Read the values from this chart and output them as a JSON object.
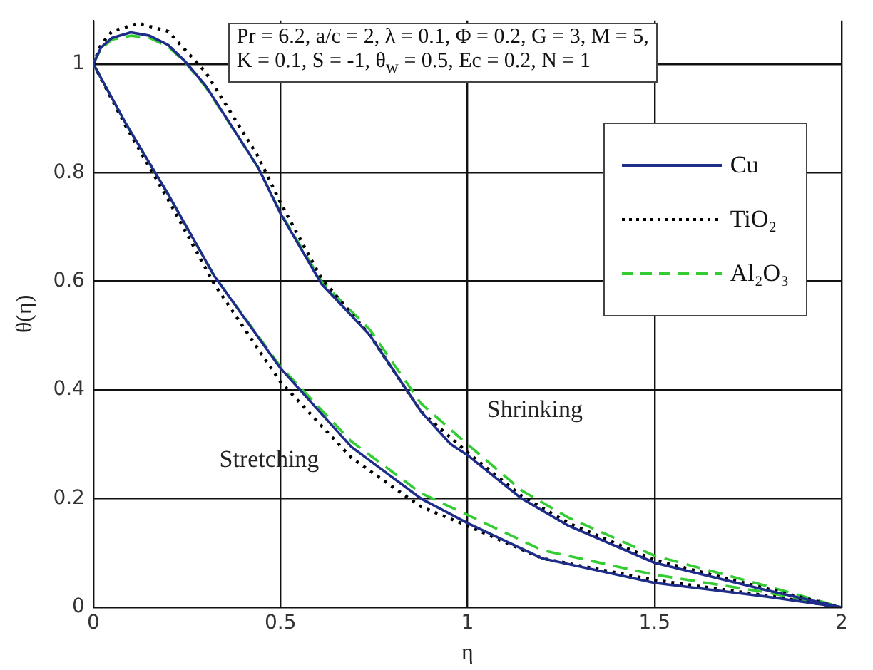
{
  "chart_data": {
    "type": "line",
    "xlabel": "η",
    "ylabel": "θ(η)",
    "xlim": [
      0,
      2
    ],
    "xticks": [
      0,
      0.5,
      1,
      1.5,
      2
    ],
    "ylim": [
      0,
      1.08
    ],
    "yticks": [
      0,
      0.2,
      0.4,
      0.6,
      0.8,
      1
    ],
    "grid": true,
    "legend": "top right",
    "marker": "none",
    "annotations": [
      "Pr = 6.2, a/c = 2, λ = 0.1, Φ = 0.2, G = 3, M = 5,",
      "K = 0.1, S = -1, θ$_{w}$ = 0.5, Ec = 0.2, N = 1",
      "Shrinking",
      "Stretching"
    ],
    "series": [
      {
        "name": "Cu",
        "color": "#1f2d8a",
        "line_style": "solid",
        "x": [
          0,
          0.02,
          0.05,
          0.1,
          0.15,
          0.2,
          0.245,
          0.3,
          0.44,
          0.5,
          0.61,
          0.74,
          0.876,
          0.955,
          1,
          1.145,
          1.27,
          1.5,
          1.795,
          2,
          null,
          0,
          0.087,
          0.2,
          0.323,
          0.5,
          0.69,
          0.876,
          1,
          1.2,
          1.5,
          1.795,
          2
        ],
        "values": [
          1,
          1.03,
          1.048,
          1.058,
          1.052,
          1.035,
          1.005,
          0.96,
          0.81,
          0.725,
          0.595,
          0.5,
          0.36,
          0.3,
          0.28,
          0.2,
          0.15,
          0.082,
          0.032,
          0,
          null,
          1,
          0.89,
          0.76,
          0.61,
          0.44,
          0.295,
          0.2,
          0.155,
          0.09,
          0.045,
          0.02,
          0
        ]
      },
      {
        "name": "TiO₂",
        "color": "#000000",
        "line_style": "dotted",
        "x": [
          0,
          0.02,
          0.05,
          0.12,
          0.2,
          0.3,
          0.44,
          0.5,
          0.61,
          0.74,
          0.876,
          1,
          1.145,
          1.27,
          1.5,
          1.795,
          2,
          null,
          0,
          0.087,
          0.2,
          0.323,
          0.5,
          0.69,
          0.876,
          1,
          1.2,
          1.5,
          1.795,
          2
        ],
        "values": [
          1,
          1.035,
          1.06,
          1.075,
          1.06,
          0.985,
          0.83,
          0.745,
          0.605,
          0.5,
          0.36,
          0.285,
          0.205,
          0.155,
          0.087,
          0.035,
          0,
          null,
          1,
          0.885,
          0.75,
          0.595,
          0.415,
          0.275,
          0.185,
          0.15,
          0.09,
          0.05,
          0.022,
          0
        ]
      },
      {
        "name": "Al₂O₃",
        "color": "#33cc33",
        "line_style": "dashed",
        "x": [
          0,
          0.02,
          0.05,
          0.1,
          0.15,
          0.2,
          0.245,
          0.3,
          0.44,
          0.5,
          0.61,
          0.74,
          0.876,
          1,
          1.145,
          1.27,
          1.5,
          1.795,
          2,
          null,
          0,
          0.087,
          0.2,
          0.323,
          0.5,
          0.69,
          0.876,
          1,
          1.2,
          1.5,
          1.795,
          2
        ],
        "values": [
          1,
          1.028,
          1.045,
          1.052,
          1.048,
          1.032,
          1.003,
          0.958,
          0.81,
          0.727,
          0.6,
          0.51,
          0.375,
          0.3,
          0.215,
          0.165,
          0.095,
          0.04,
          0,
          null,
          1,
          0.89,
          0.76,
          0.61,
          0.443,
          0.305,
          0.21,
          0.17,
          0.105,
          0.06,
          0.028,
          0
        ]
      }
    ]
  }
}
